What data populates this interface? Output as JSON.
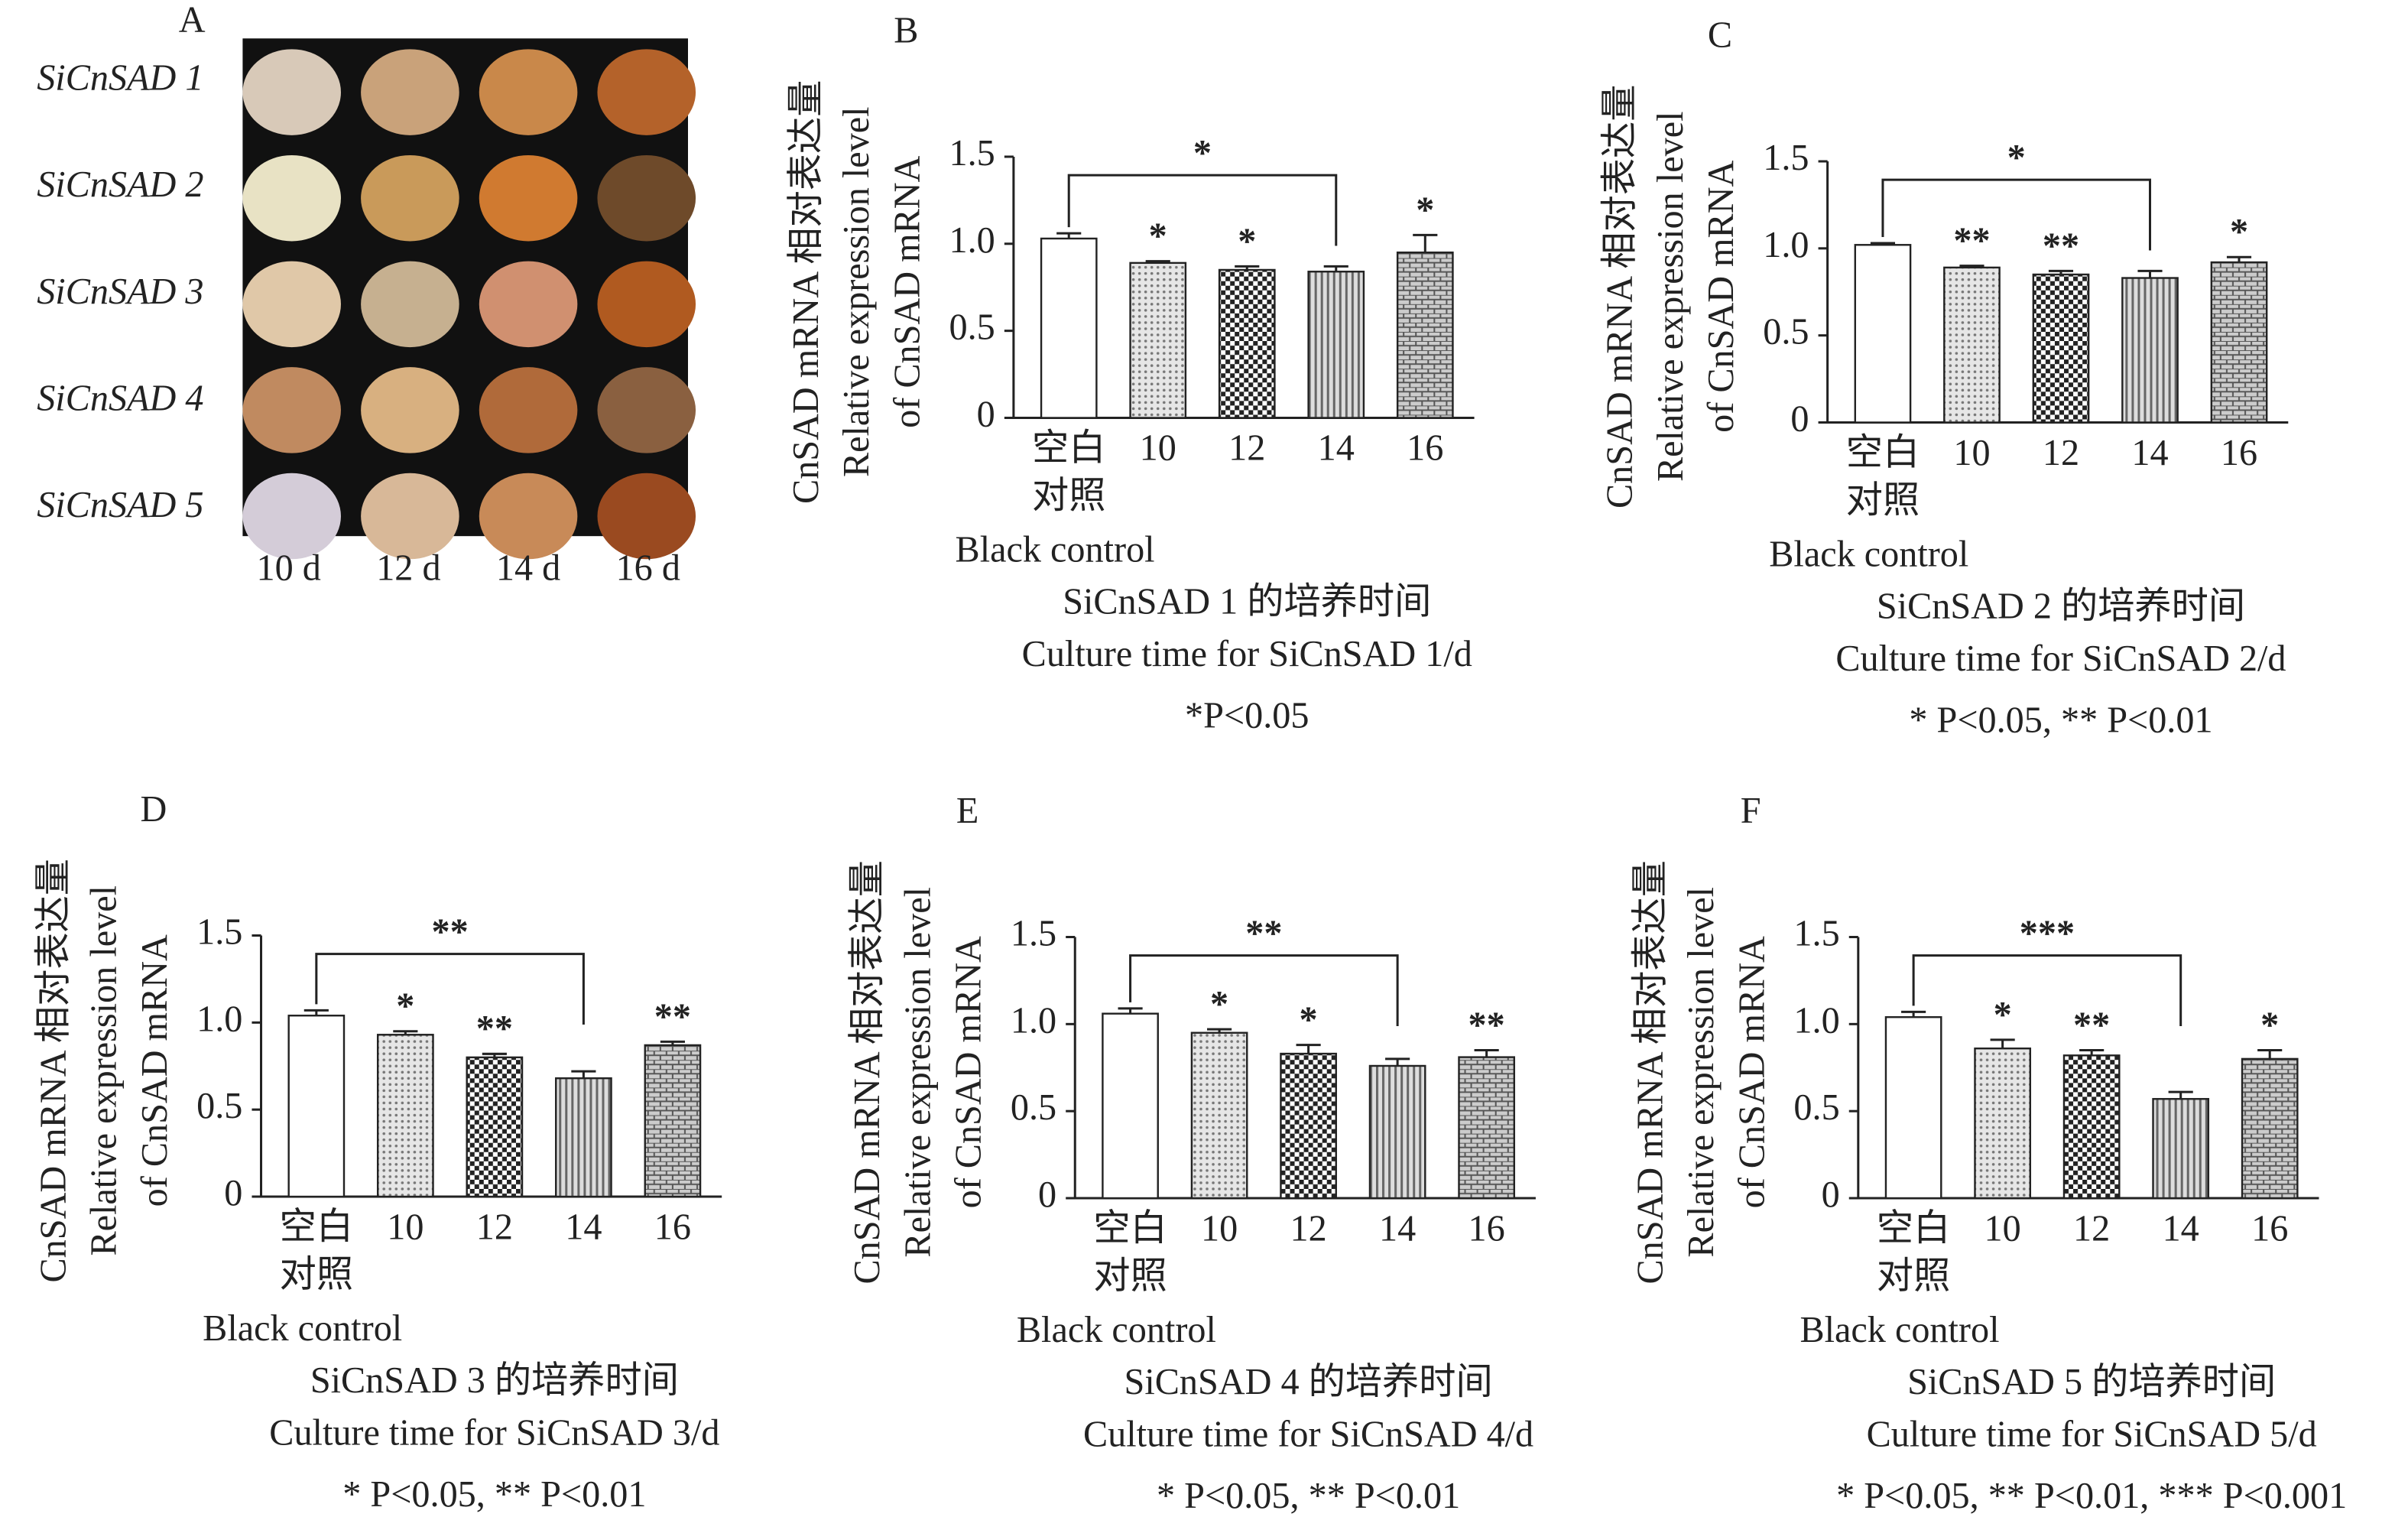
{
  "panel_a": {
    "letter": "A",
    "rows": [
      "SiCnSAD 1",
      "SiCnSAD 2",
      "SiCnSAD 3",
      "SiCnSAD 4",
      "SiCnSAD 5"
    ],
    "columns": [
      "10 d",
      "12 d",
      "14 d",
      "16 d"
    ]
  },
  "chart_data": [
    {
      "type": "bar",
      "letter": "B",
      "y_label": [
        "CnSAD mRNA 相对表达量",
        "Relative expression level",
        "of CnSAD mRNA"
      ],
      "categories": [
        "空白\n对照",
        "10",
        "12",
        "14",
        "16"
      ],
      "control_label": "Black control",
      "x_label": [
        "SiCnSAD 1 的培养时间",
        "Culture time for SiCnSAD 1/d"
      ],
      "footnote": "*P<0.05",
      "values": [
        1.03,
        0.89,
        0.85,
        0.84,
        0.95
      ],
      "errors": [
        0.03,
        0.01,
        0.02,
        0.03,
        0.1
      ],
      "significance": [
        null,
        "*",
        "*",
        null,
        "*"
      ],
      "bracket": {
        "from": 0,
        "to": 3,
        "label": "*"
      },
      "patterns": [
        "none",
        "dots",
        "checker",
        "vstripes",
        "brick"
      ],
      "ylim": [
        0,
        1.5
      ],
      "yticks": [
        0,
        0.5,
        {
          "value": 1,
          "label": "1.0"
        },
        1.5
      ]
    },
    {
      "type": "bar",
      "letter": "C",
      "y_label": [
        "CnSAD mRNA 相对表达量",
        "Relative expression level",
        "of CnSAD mRNA"
      ],
      "categories": [
        "空白\n对照",
        "10",
        "12",
        "14",
        "16"
      ],
      "control_label": "Black control",
      "x_label": [
        "SiCnSAD 2 的培养时间",
        "Culture time for SiCnSAD 2/d"
      ],
      "footnote": "* P<0.05, ** P<0.01",
      "values": [
        1.02,
        0.89,
        0.85,
        0.83,
        0.92
      ],
      "errors": [
        0.01,
        0.01,
        0.02,
        0.04,
        0.03
      ],
      "significance": [
        null,
        "**",
        "**",
        null,
        "*"
      ],
      "bracket": {
        "from": 0,
        "to": 3,
        "label": "*"
      },
      "patterns": [
        "none",
        "dots",
        "checker",
        "vstripes",
        "brick"
      ],
      "ylim": [
        0,
        1.5
      ],
      "yticks": [
        0,
        0.5,
        {
          "value": 1,
          "label": "1.0"
        },
        1.5
      ]
    },
    {
      "type": "bar",
      "letter": "D",
      "y_label": [
        "CnSAD mRNA 相对表达量",
        "Relative expression level",
        "of CnSAD mRNA"
      ],
      "categories": [
        "空白\n对照",
        "10",
        "12",
        "14",
        "16"
      ],
      "control_label": "Black control",
      "x_label": [
        "SiCnSAD 3 的培养时间",
        "Culture time for SiCnSAD 3/d"
      ],
      "footnote": "* P<0.05, ** P<0.01",
      "values": [
        1.04,
        0.93,
        0.8,
        0.68,
        0.87
      ],
      "errors": [
        0.03,
        0.02,
        0.02,
        0.04,
        0.02
      ],
      "significance": [
        null,
        "*",
        "**",
        null,
        "**"
      ],
      "bracket": {
        "from": 0,
        "to": 3,
        "label": "**"
      },
      "patterns": [
        "none",
        "dots",
        "checker",
        "vstripes",
        "brick"
      ],
      "ylim": [
        0,
        1.5
      ],
      "yticks": [
        0,
        0.5,
        {
          "value": 1,
          "label": "1.0"
        },
        1.5
      ]
    },
    {
      "type": "bar",
      "letter": "E",
      "y_label": [
        "CnSAD mRNA 相对表达量",
        "Relative expression level",
        "of CnSAD mRNA"
      ],
      "categories": [
        "空白\n对照",
        "10",
        "12",
        "14",
        "16"
      ],
      "control_label": "Black control",
      "x_label": [
        "SiCnSAD 4 的培养时间",
        "Culture time for SiCnSAD 4/d"
      ],
      "footnote": "* P<0.05, ** P<0.01",
      "values": [
        1.06,
        0.95,
        0.83,
        0.76,
        0.81
      ],
      "errors": [
        0.03,
        0.02,
        0.05,
        0.04,
        0.04
      ],
      "significance": [
        null,
        "*",
        "*",
        null,
        "**"
      ],
      "bracket": {
        "from": 0,
        "to": 3,
        "label": "**"
      },
      "patterns": [
        "none",
        "dots",
        "checker",
        "vstripes",
        "brick"
      ],
      "ylim": [
        0,
        1.5
      ],
      "yticks": [
        0,
        0.5,
        {
          "value": 1,
          "label": "1.0"
        },
        1.5
      ]
    },
    {
      "type": "bar",
      "letter": "F",
      "y_label": [
        "CnSAD mRNA 相对表达量",
        "Relative expression level",
        "of CnSAD mRNA"
      ],
      "categories": [
        "空白\n对照",
        "10",
        "12",
        "14",
        "16"
      ],
      "control_label": "Black control",
      "x_label": [
        "SiCnSAD 5 的培养时间",
        "Culture time for SiCnSAD 5/d"
      ],
      "footnote": "* P<0.05, ** P<0.01, *** P<0.001",
      "values": [
        1.04,
        0.86,
        0.82,
        0.57,
        0.8
      ],
      "errors": [
        0.03,
        0.05,
        0.03,
        0.04,
        0.05
      ],
      "significance": [
        null,
        "*",
        "**",
        null,
        "*"
      ],
      "bracket": {
        "from": 0,
        "to": 3,
        "label": "***"
      },
      "patterns": [
        "none",
        "dots",
        "checker",
        "vstripes",
        "brick"
      ],
      "ylim": [
        0,
        1.5
      ],
      "yticks": [
        0,
        0.5,
        {
          "value": 1,
          "label": "1.0"
        },
        1.5
      ]
    }
  ]
}
